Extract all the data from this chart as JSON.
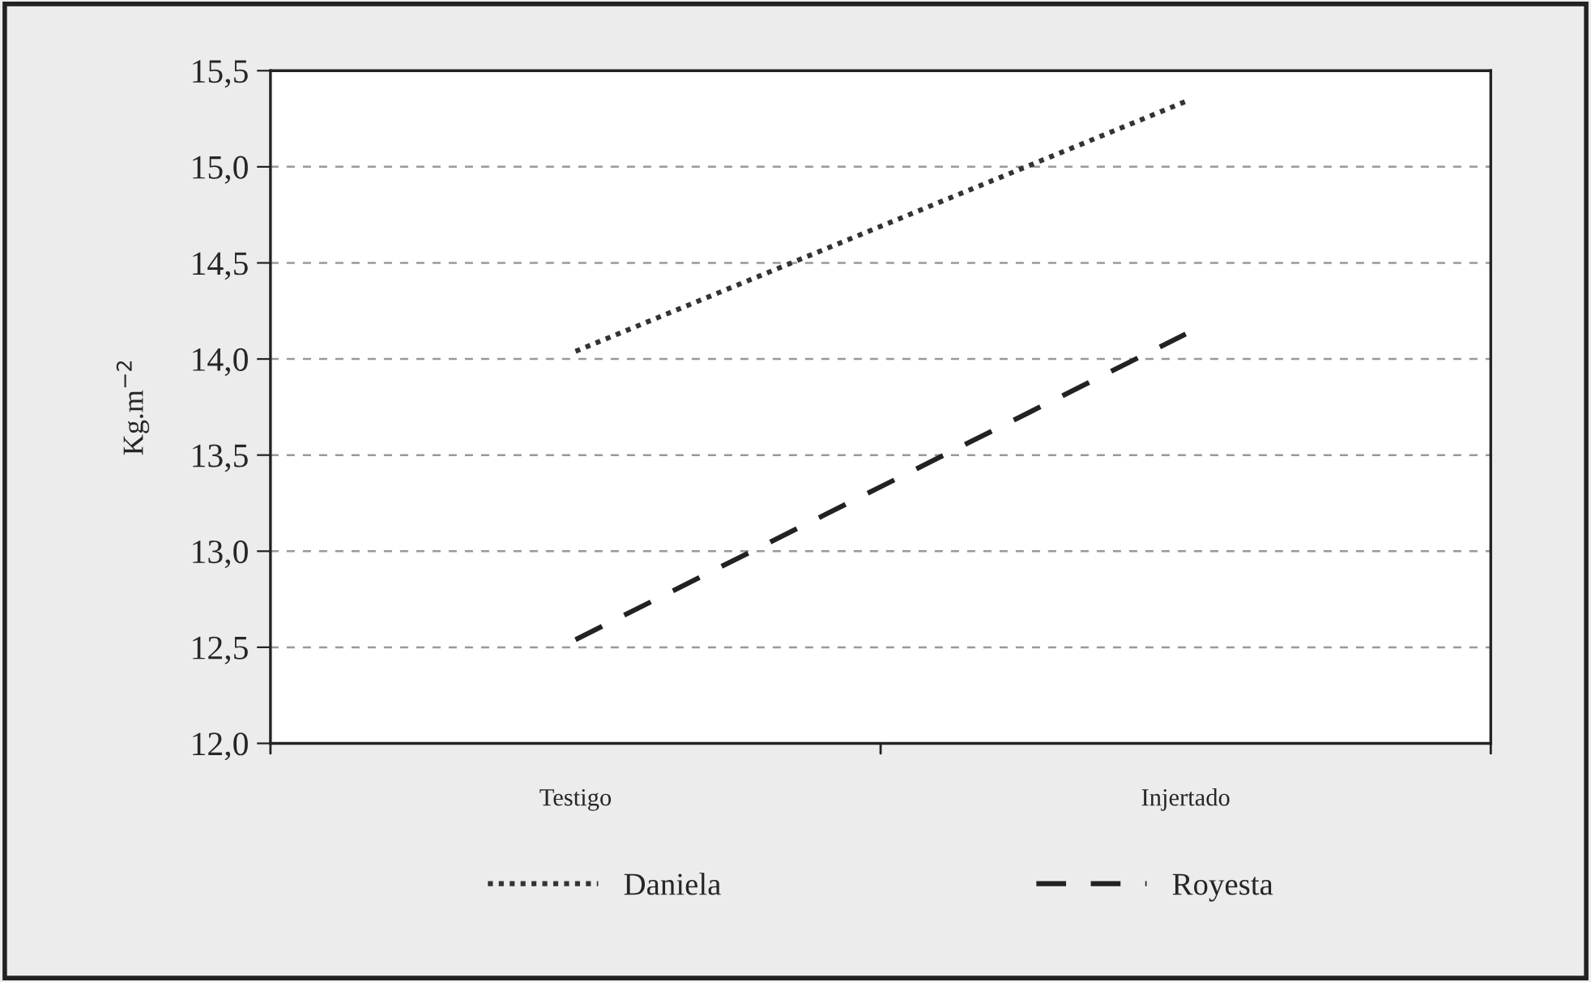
{
  "chart_data": {
    "type": "line",
    "ylabel": "Kg.m$^{−2}$",
    "categories": [
      "Testigo",
      "Injertado"
    ],
    "series": [
      {
        "name": "Daniela",
        "color": "#333333",
        "line_style": "dotted",
        "values": [
          14.04,
          15.34
        ]
      },
      {
        "name": "Royesta",
        "color": "#222222",
        "line_style": "dashed",
        "values": [
          12.54,
          14.13
        ]
      }
    ],
    "ylim": [
      12.0,
      15.5
    ],
    "yticks": [
      {
        "value": 12.0,
        "label": "12,0"
      },
      {
        "value": 12.5,
        "label": "12,5"
      },
      {
        "value": 13.0,
        "label": "13,0"
      },
      {
        "value": 13.5,
        "label": "13,5"
      },
      {
        "value": 14.0,
        "label": "14,0"
      },
      {
        "value": 14.5,
        "label": "14,5"
      },
      {
        "value": 15.0,
        "label": "15,0"
      },
      {
        "value": 15.5,
        "label": "15,5"
      }
    ],
    "grid": "y",
    "legend": "bottom",
    "marker": "none"
  }
}
